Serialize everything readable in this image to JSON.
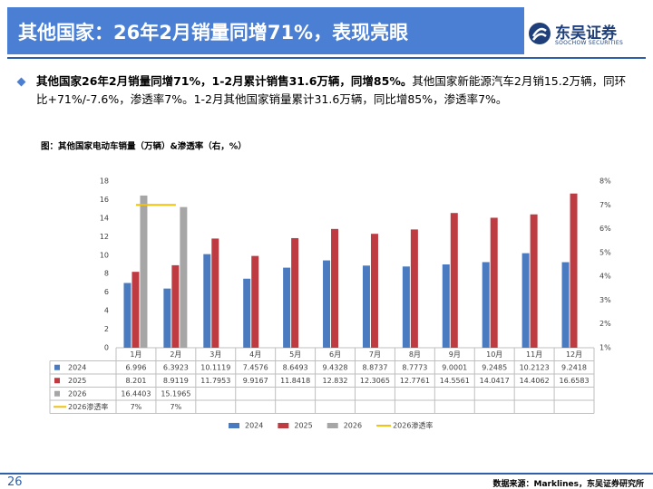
{
  "header": {
    "title": "其他国家：26年2月销量同增71%，表现亮眼",
    "logo_cn": "东吴证券",
    "logo_en": "SOOCHOW SECURITIES"
  },
  "bullet": {
    "bold": "其他国家26年2月销量同增71%，1-2月累计销售31.6万辆，同增85%。",
    "text": "其他国家新能源汽车2月销15.2万辆，同环比+71%/-7.6%，渗透率7%。1-2月其他国家销量累计31.6万辆，同比增85%，渗透率7%。"
  },
  "chart_data": {
    "type": "bar",
    "title": "图：其他国家电动车销量（万辆）&渗透率（右，%）",
    "categories": [
      "1月",
      "2月",
      "3月",
      "4月",
      "5月",
      "6月",
      "7月",
      "8月",
      "9月",
      "10月",
      "11月",
      "12月"
    ],
    "series": [
      {
        "name": "2024",
        "type": "bar",
        "color": "#4a7bc0",
        "values": [
          6.996,
          6.3923,
          10.1119,
          7.4576,
          8.6493,
          9.4328,
          8.8737,
          8.7773,
          9.0001,
          9.2485,
          10.2123,
          9.2418
        ]
      },
      {
        "name": "2025",
        "type": "bar",
        "color": "#bf3b42",
        "values": [
          8.201,
          8.9119,
          11.7953,
          9.9167,
          11.8418,
          12.832,
          12.3065,
          12.7761,
          14.5561,
          14.0417,
          14.4062,
          16.6583
        ]
      },
      {
        "name": "2026",
        "type": "bar",
        "color": "#a6a6a6",
        "values": [
          16.4403,
          15.1965,
          null,
          null,
          null,
          null,
          null,
          null,
          null,
          null,
          null,
          null
        ]
      },
      {
        "name": "2026渗透率",
        "type": "line",
        "axis": "y2",
        "color": "#f2c20f",
        "values": [
          7,
          7,
          null,
          null,
          null,
          null,
          null,
          null,
          null,
          null,
          null,
          null
        ],
        "value_labels": [
          "7%",
          "7%",
          null,
          null,
          null,
          null,
          null,
          null,
          null,
          null,
          null,
          null
        ]
      }
    ],
    "ylim": [
      0,
      18
    ],
    "yticks": [
      0,
      2,
      4,
      6,
      8,
      10,
      12,
      14,
      16,
      18
    ],
    "y2lim": [
      1,
      8
    ],
    "y2ticks": [
      {
        "value": 1,
        "label": "1%"
      },
      {
        "value": 2,
        "label": "2%"
      },
      {
        "value": 3,
        "label": "3%"
      },
      {
        "value": 4,
        "label": "4%"
      },
      {
        "value": 5,
        "label": "5%"
      },
      {
        "value": 6,
        "label": "6%"
      },
      {
        "value": 7,
        "label": "7%"
      },
      {
        "value": 8,
        "label": "8%"
      }
    ],
    "grid": false
  },
  "footer": {
    "page": "26",
    "source": "数据来源：Marklines，东吴证券研究所"
  }
}
